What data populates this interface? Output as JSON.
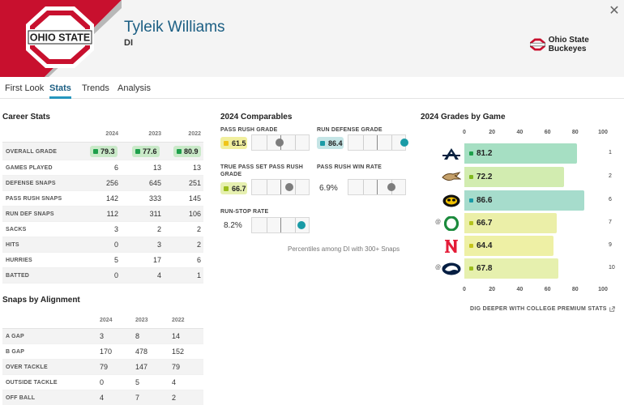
{
  "player": {
    "name": "Tyleik Williams",
    "position": "DI",
    "team": "Ohio State Buckeyes"
  },
  "logo": {
    "text": "OHIO STATE",
    "primary_color": "#c8102e",
    "secondary_color": "#b8b8b8"
  },
  "close_icon": "close-icon",
  "tabs": [
    {
      "label": "First Look",
      "active": false
    },
    {
      "label": "Stats",
      "active": true
    },
    {
      "label": "Trends",
      "active": false
    },
    {
      "label": "Analysis",
      "active": false
    }
  ],
  "career_stats": {
    "title": "Career Stats",
    "columns": [
      "2024",
      "2023",
      "2022"
    ],
    "rows": [
      {
        "label": "OVERALL GRADE",
        "values": [
          "79.3",
          "77.6",
          "80.9"
        ]
      },
      {
        "label": "GAMES PLAYED",
        "values": [
          "6",
          "13",
          "13"
        ]
      },
      {
        "label": "DEFENSE SNAPS",
        "values": [
          "256",
          "645",
          "251"
        ]
      },
      {
        "label": "PASS RUSH SNAPS",
        "values": [
          "142",
          "333",
          "145"
        ]
      },
      {
        "label": "RUN DEF SNAPS",
        "values": [
          "112",
          "311",
          "106"
        ]
      },
      {
        "label": "SACKS",
        "values": [
          "3",
          "2",
          "2"
        ]
      },
      {
        "label": "HITS",
        "values": [
          "0",
          "3",
          "2"
        ]
      },
      {
        "label": "HURRIES",
        "values": [
          "5",
          "17",
          "6"
        ]
      },
      {
        "label": "BATTED",
        "values": [
          "0",
          "4",
          "1"
        ]
      }
    ]
  },
  "snaps_by_alignment": {
    "title": "Snaps by Alignment",
    "columns": [
      "2024",
      "2023",
      "2022"
    ],
    "rows": [
      {
        "label": "A GAP",
        "values": [
          "3",
          "8",
          "14"
        ]
      },
      {
        "label": "B GAP",
        "values": [
          "170",
          "478",
          "152"
        ]
      },
      {
        "label": "OVER TACKLE",
        "values": [
          "79",
          "147",
          "79"
        ]
      },
      {
        "label": "OUTSIDE TACKLE",
        "values": [
          "0",
          "5",
          "4"
        ]
      },
      {
        "label": "OFF BALL",
        "values": [
          "4",
          "7",
          "2"
        ]
      }
    ]
  },
  "comparables": {
    "title": "2024 Comparables",
    "footnote": "Percentiles among DI with 300+ Snaps",
    "items": [
      {
        "label": "PASS RUSH GRADE",
        "value": "61.5",
        "badge_color": "#f1ef9e",
        "dot_color": "#f0c419",
        "percentile": 0.48,
        "dot": "#7d7d7d"
      },
      {
        "label": "RUN DEFENSE GRADE",
        "value": "86.4",
        "badge_color": "#c5e5e6",
        "dot_color": "#1a9ba6",
        "percentile": 0.98,
        "dot": "#1a9ba6"
      },
      {
        "label": "TRUE PASS SET PASS RUSH GRADE",
        "value": "66.7",
        "badge_color": "#e6f0b0",
        "dot_color": "#9bbd1d",
        "percentile": 0.65,
        "dot": "#7d7d7d"
      },
      {
        "label": "PASS RUSH WIN RATE",
        "value": "6.9%",
        "badge_color": "",
        "dot_color": "",
        "percentile": 0.75,
        "dot": "#7d7d7d"
      },
      {
        "label": "RUN-STOP RATE",
        "value": "8.2%",
        "badge_color": "",
        "dot_color": "",
        "percentile": 0.87,
        "dot": "#1a9ba6"
      }
    ]
  },
  "grades_by_game": {
    "title": "2024 Grades by Game",
    "axis_ticks": [
      "0",
      "20",
      "40",
      "60",
      "80",
      "100"
    ],
    "link_label": "DIG DEEPER WITH COLLEGE PREMIUM STATS",
    "link_icon": "external-link-icon"
  },
  "chart_data": {
    "type": "bar",
    "orientation": "horizontal",
    "title": "2024 Grades by Game",
    "xlim": [
      0,
      100
    ],
    "categories": [
      "Akron",
      "Western Michigan",
      "Iowa",
      "@ Oregon",
      "Nebraska",
      "@ Penn State"
    ],
    "weeks": [
      "1",
      "2",
      "6",
      "7",
      "9",
      "10"
    ],
    "away": [
      false,
      false,
      false,
      true,
      false,
      true
    ],
    "values": [
      81.2,
      72.2,
      86.6,
      66.7,
      64.4,
      67.8
    ],
    "value_labels": [
      "81.2",
      "72.2",
      "86.6",
      "66.7",
      "64.4",
      "67.8"
    ],
    "bar_colors": [
      "#a6dfc3",
      "#d2ecb0",
      "#a6dccc",
      "#ebefa8",
      "#eef0a5",
      "#e6f0ae"
    ],
    "dot_colors": [
      "#1e9f4b",
      "#7fb81e",
      "#1a9ba6",
      "#b3c21c",
      "#c4c419",
      "#9bbd1d"
    ],
    "opponent_icons": [
      "akron-logo-icon",
      "western-michigan-logo-icon",
      "iowa-logo-icon",
      "oregon-logo-icon",
      "nebraska-logo-icon",
      "penn-state-logo-icon"
    ]
  }
}
